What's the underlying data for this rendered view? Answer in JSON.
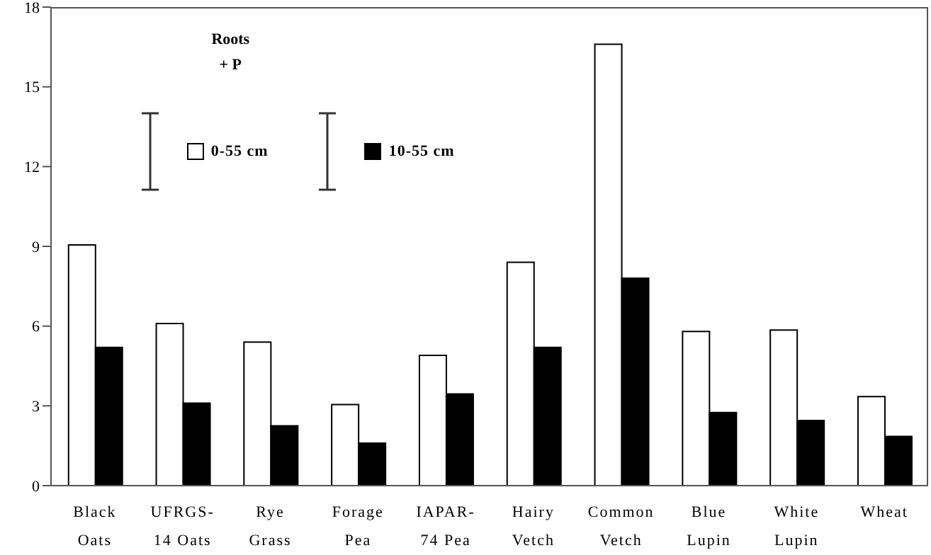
{
  "chart_data": {
    "type": "bar",
    "categories": [
      "Black\nOats",
      "UFRGS-\n14 Oats",
      "Rye\nGrass",
      "Forage\nPea",
      "IAPAR-\n74 Pea",
      "Hairy\nVetch",
      "Common\nVetch",
      "Blue\nLupin",
      "White\nLupin",
      "Wheat"
    ],
    "series": [
      {
        "name": "0-55 cm",
        "color": "#ffffff",
        "values": [
          9.05,
          6.1,
          5.4,
          3.05,
          4.9,
          8.4,
          16.6,
          5.8,
          5.85,
          3.35
        ]
      },
      {
        "name": "10-55 cm",
        "color": "#000000",
        "values": [
          5.2,
          3.1,
          2.25,
          1.6,
          3.45,
          5.2,
          7.8,
          2.75,
          2.45,
          1.85
        ]
      }
    ],
    "ylim": [
      0,
      18
    ],
    "yticks": [
      0,
      3,
      6,
      9,
      12,
      15,
      18
    ],
    "annotations": [
      "Roots\n+ P"
    ],
    "legend": "top",
    "grid": false
  }
}
